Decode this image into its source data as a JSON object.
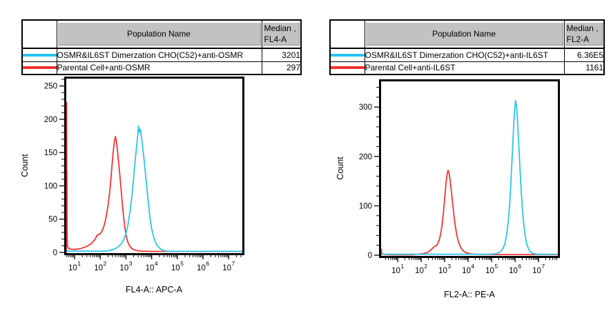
{
  "panels": [
    {
      "table": {
        "header": {
          "population": "Population Name",
          "median_line1": "Median ,",
          "median_line2": "FL4-A"
        },
        "rows": [
          {
            "swatch_color": "#28C4F0",
            "population": "OSMR&IL6ST Dimerzation CHO(C52)+anti-OSMR",
            "median": "3201"
          },
          {
            "swatch_color": "#F23230",
            "population": "Parental Cell+anti-OSMR",
            "median": "297"
          }
        ]
      }
    },
    {
      "table": {
        "header": {
          "population": "Population Name",
          "median_line1": "Median ,",
          "median_line2": "FL2-A"
        },
        "rows": [
          {
            "swatch_color": "#28C4F0",
            "population": "OSMR&IL6ST Dimerzation CHO(C52)+anti-IL6ST",
            "median": "6.36E5"
          },
          {
            "swatch_color": "#F23230",
            "population": "Parental Cell+anti-IL6ST",
            "median": "1161"
          }
        ]
      }
    }
  ],
  "colors": {
    "cyan": "#28C4F0",
    "red": "#F23230",
    "table_header_bg": "#C2C2C2",
    "axis": "#000000"
  },
  "chart_data": [
    {
      "type": "line",
      "subtype": "flow-cytometry-histogram",
      "title": "",
      "xlabel": "FL4-A:: APC-A",
      "ylabel": "Count",
      "x_scale": "log10",
      "x_log_range": [
        0.677,
        7.53
      ],
      "x_major_tick_exponents": [
        1,
        2,
        3,
        4,
        5,
        6,
        7
      ],
      "ylim": [
        0,
        261
      ],
      "y_major_ticks": [
        0,
        50,
        100,
        150,
        200,
        250
      ],
      "y_minor_step": 10,
      "grid": false,
      "legend": "none",
      "series": [
        {
          "name": "OSMR&IL6ST Dimerzation CHO(C52)+anti-OSMR",
          "color": "#28C4F0",
          "median": "3201",
          "points_logx_count": [
            [
              0.677,
              2
            ],
            [
              2.1,
              2
            ],
            [
              2.3,
              2.5
            ],
            [
              2.45,
              4
            ],
            [
              2.6,
              6
            ],
            [
              2.72,
              9
            ],
            [
              2.82,
              13
            ],
            [
              2.92,
              20
            ],
            [
              3.0,
              28
            ],
            [
              3.08,
              42
            ],
            [
              3.16,
              62
            ],
            [
              3.24,
              88
            ],
            [
              3.3,
              112
            ],
            [
              3.36,
              138
            ],
            [
              3.42,
              162
            ],
            [
              3.46,
              176
            ],
            [
              3.49,
              190
            ],
            [
              3.52,
              181
            ],
            [
              3.56,
              185
            ],
            [
              3.6,
              174
            ],
            [
              3.65,
              159
            ],
            [
              3.7,
              141
            ],
            [
              3.75,
              122
            ],
            [
              3.8,
              103
            ],
            [
              3.85,
              83
            ],
            [
              3.9,
              64
            ],
            [
              3.95,
              48
            ],
            [
              4.0,
              36
            ],
            [
              4.06,
              26
            ],
            [
              4.12,
              18
            ],
            [
              4.19,
              12
            ],
            [
              4.27,
              8
            ],
            [
              4.36,
              5
            ],
            [
              4.46,
              3
            ],
            [
              4.6,
              2
            ],
            [
              4.9,
              1.7
            ],
            [
              7.53,
              1.7
            ]
          ]
        },
        {
          "name": "Parental Cell+anti-OSMR",
          "color": "#F23230",
          "median": "297",
          "points_logx_count": [
            [
              0.677,
              0
            ],
            [
              0.682,
              225
            ],
            [
              0.69,
              225
            ],
            [
              0.697,
              122
            ],
            [
              0.703,
              122
            ],
            [
              0.71,
              28
            ],
            [
              0.72,
              11
            ],
            [
              0.75,
              7
            ],
            [
              0.8,
              5.5
            ],
            [
              0.95,
              4.5
            ],
            [
              1.1,
              5
            ],
            [
              1.25,
              6
            ],
            [
              1.4,
              8
            ],
            [
              1.52,
              10
            ],
            [
              1.62,
              12.5
            ],
            [
              1.72,
              16
            ],
            [
              1.8,
              20
            ],
            [
              1.88,
              26
            ],
            [
              1.96,
              27
            ],
            [
              2.02,
              29
            ],
            [
              2.08,
              33
            ],
            [
              2.14,
              39
            ],
            [
              2.2,
              48
            ],
            [
              2.26,
              60
            ],
            [
              2.32,
              75
            ],
            [
              2.38,
              95
            ],
            [
              2.44,
              122
            ],
            [
              2.5,
              150
            ],
            [
              2.55,
              166
            ],
            [
              2.59,
              174
            ],
            [
              2.63,
              166
            ],
            [
              2.67,
              153
            ],
            [
              2.71,
              137
            ],
            [
              2.76,
              117
            ],
            [
              2.81,
              95
            ],
            [
              2.86,
              73
            ],
            [
              2.91,
              53
            ],
            [
              2.96,
              37
            ],
            [
              3.01,
              25
            ],
            [
              3.07,
              16
            ],
            [
              3.14,
              10
            ],
            [
              3.22,
              6
            ],
            [
              3.32,
              4
            ],
            [
              3.45,
              2.5
            ],
            [
              3.6,
              2
            ],
            [
              4.0,
              1.6
            ],
            [
              7.53,
              1.6
            ]
          ]
        }
      ]
    },
    {
      "type": "line",
      "subtype": "flow-cytometry-histogram",
      "title": "",
      "xlabel": "FL2-A:: PE-A",
      "ylabel": "Count",
      "x_scale": "log10",
      "x_log_range": [
        0.29,
        7.82
      ],
      "x_major_tick_exponents": [
        1,
        2,
        3,
        4,
        5,
        6,
        7
      ],
      "ylim": [
        0,
        352
      ],
      "y_major_ticks": [
        0,
        100,
        200,
        300
      ],
      "y_minor_step": 20,
      "grid": false,
      "legend": "none",
      "series": [
        {
          "name": "OSMR&IL6ST Dimerzation CHO(C52)+anti-IL6ST",
          "color": "#28C4F0",
          "median": "6.36E5",
          "points_logx_count": [
            [
              0.29,
              2
            ],
            [
              4.9,
              2
            ],
            [
              5.1,
              2.5
            ],
            [
              5.25,
              4
            ],
            [
              5.38,
              7
            ],
            [
              5.48,
              13
            ],
            [
              5.57,
              24
            ],
            [
              5.64,
              42
            ],
            [
              5.71,
              70
            ],
            [
              5.77,
              105
            ],
            [
              5.82,
              148
            ],
            [
              5.87,
              195
            ],
            [
              5.91,
              235
            ],
            [
              5.95,
              272
            ],
            [
              5.99,
              300
            ],
            [
              6.02,
              313
            ],
            [
              6.05,
              305
            ],
            [
              6.09,
              282
            ],
            [
              6.13,
              248
            ],
            [
              6.17,
              210
            ],
            [
              6.22,
              165
            ],
            [
              6.27,
              122
            ],
            [
              6.32,
              88
            ],
            [
              6.38,
              58
            ],
            [
              6.44,
              36
            ],
            [
              6.5,
              22
            ],
            [
              6.57,
              13
            ],
            [
              6.65,
              7
            ],
            [
              6.74,
              4
            ],
            [
              6.85,
              2.5
            ],
            [
              7.0,
              2
            ],
            [
              7.82,
              2
            ]
          ]
        },
        {
          "name": "Parental Cell+anti-IL6ST",
          "color": "#F23230",
          "median": "1161",
          "points_logx_count": [
            [
              0.29,
              0
            ],
            [
              0.294,
              12
            ],
            [
              0.302,
              12
            ],
            [
              0.312,
              6
            ],
            [
              0.33,
              3
            ],
            [
              0.38,
              1.8
            ],
            [
              0.5,
              1.2
            ],
            [
              0.8,
              1
            ],
            [
              1.6,
              1
            ],
            [
              1.85,
              2
            ],
            [
              2.05,
              3
            ],
            [
              2.2,
              4.5
            ],
            [
              2.32,
              7
            ],
            [
              2.42,
              11
            ],
            [
              2.5,
              15
            ],
            [
              2.58,
              18
            ],
            [
              2.64,
              19
            ],
            [
              2.7,
              23
            ],
            [
              2.77,
              31
            ],
            [
              2.83,
              44
            ],
            [
              2.89,
              62
            ],
            [
              2.95,
              88
            ],
            [
              3.0,
              115
            ],
            [
              3.05,
              143
            ],
            [
              3.1,
              163
            ],
            [
              3.14,
              172
            ],
            [
              3.18,
              167
            ],
            [
              3.23,
              152
            ],
            [
              3.28,
              131
            ],
            [
              3.33,
              108
            ],
            [
              3.38,
              86
            ],
            [
              3.44,
              63
            ],
            [
              3.5,
              45
            ],
            [
              3.57,
              30
            ],
            [
              3.64,
              20
            ],
            [
              3.72,
              13
            ],
            [
              3.81,
              8
            ],
            [
              3.91,
              5
            ],
            [
              4.03,
              3.5
            ],
            [
              4.15,
              2.5
            ],
            [
              4.35,
              1.6
            ],
            [
              5.0,
              1.4
            ],
            [
              7.82,
              1.4
            ]
          ]
        }
      ]
    }
  ]
}
